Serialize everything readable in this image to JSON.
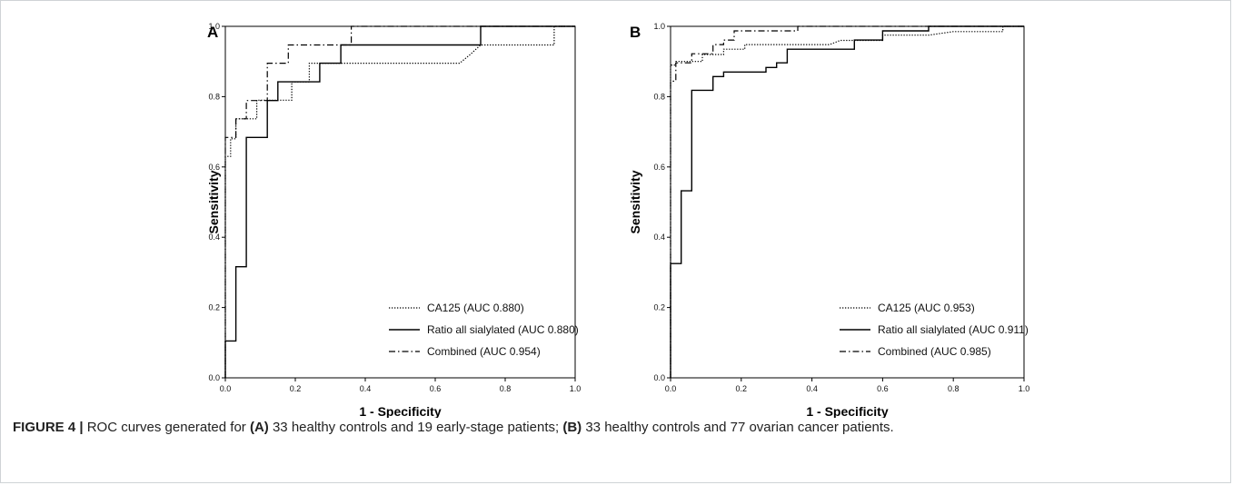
{
  "caption": {
    "figure_label": "FIGURE 4 |",
    "text_1": " ROC curves generated for ",
    "tag_a": "(A)",
    "text_2": " 33 healthy controls and 19 early-stage patients; ",
    "tag_b": "(B)",
    "text_3": " 33 healthy controls and 77 ovarian cancer patients."
  },
  "chart_data": [
    {
      "type": "line",
      "panel": "A",
      "xlabel": "1 - Specificity",
      "ylabel": "Sensitivity",
      "xlim": [
        0,
        1
      ],
      "ylim": [
        0,
        1
      ],
      "x_ticks": [
        "0.0",
        "0.2",
        "0.4",
        "0.6",
        "0.8",
        "1.0"
      ],
      "y_ticks": [
        "0.0",
        "0.2",
        "0.4",
        "0.6",
        "0.8",
        "1.0"
      ],
      "grid": false,
      "legend_position": "bottom-right",
      "series": [
        {
          "name": "CA125 (AUC 0.880)",
          "style": "dotted",
          "x": [
            0,
            0,
            0.015,
            0.015,
            0.03,
            0.03,
            0.09,
            0.09,
            0.15,
            0.15,
            0.19,
            0.19,
            0.24,
            0.24,
            0.36,
            0.36,
            0.67,
            0.7,
            0.73,
            0.73,
            0.94,
            0.94,
            1
          ],
          "y": [
            0,
            0.63,
            0.63,
            0.68,
            0.68,
            0.737,
            0.737,
            0.79,
            0.79,
            0.79,
            0.79,
            0.842,
            0.842,
            0.895,
            0.895,
            0.895,
            0.895,
            0.92,
            0.947,
            0.947,
            0.947,
            1,
            1
          ]
        },
        {
          "name": "Ratio all sialylated (AUC 0.880)",
          "style": "solid",
          "x": [
            0,
            0,
            0.03,
            0.03,
            0.06,
            0.06,
            0.12,
            0.12,
            0.15,
            0.15,
            0.21,
            0.21,
            0.27,
            0.27,
            0.33,
            0.33,
            0.39,
            0.39,
            0.73,
            0.73,
            1
          ],
          "y": [
            0,
            0.105,
            0.105,
            0.316,
            0.316,
            0.684,
            0.684,
            0.789,
            0.789,
            0.842,
            0.842,
            0.842,
            0.842,
            0.895,
            0.895,
            0.947,
            0.947,
            0.947,
            0.947,
            1,
            1
          ]
        },
        {
          "name": "Combined (AUC 0.954)",
          "style": "dashdot",
          "x": [
            0,
            0,
            0.03,
            0.03,
            0.06,
            0.06,
            0.12,
            0.12,
            0.18,
            0.18,
            0.36,
            0.36,
            1
          ],
          "y": [
            0,
            0.684,
            0.684,
            0.737,
            0.737,
            0.789,
            0.789,
            0.895,
            0.895,
            0.947,
            0.947,
            1,
            1
          ]
        }
      ]
    },
    {
      "type": "line",
      "panel": "B",
      "xlabel": "1 - Specificity",
      "ylabel": "Sensitivity",
      "xlim": [
        0,
        1
      ],
      "ylim": [
        0,
        1
      ],
      "x_ticks": [
        "0.0",
        "0.2",
        "0.4",
        "0.6",
        "0.8",
        "1.0"
      ],
      "y_ticks": [
        "0.0",
        "0.2",
        "0.4",
        "0.6",
        "0.8",
        "1.0"
      ],
      "grid": false,
      "legend_position": "bottom-right",
      "series": [
        {
          "name": "CA125 (AUC 0.953)",
          "style": "dotted",
          "x": [
            0,
            0,
            0.015,
            0.015,
            0.03,
            0.03,
            0.09,
            0.09,
            0.15,
            0.15,
            0.21,
            0.21,
            0.45,
            0.48,
            0.6,
            0.6,
            0.73,
            0.8,
            0.94,
            0.94,
            1
          ],
          "y": [
            0,
            0.89,
            0.89,
            0.9,
            0.9,
            0.9,
            0.9,
            0.92,
            0.92,
            0.935,
            0.935,
            0.948,
            0.948,
            0.96,
            0.96,
            0.975,
            0.975,
            0.985,
            0.985,
            1,
            1
          ]
        },
        {
          "name": "Ratio all sialylated (AUC 0.911)",
          "style": "solid",
          "x": [
            0,
            0,
            0.03,
            0.03,
            0.06,
            0.06,
            0.12,
            0.12,
            0.15,
            0.15,
            0.27,
            0.27,
            0.3,
            0.3,
            0.33,
            0.33,
            0.52,
            0.52,
            0.6,
            0.6,
            0.73,
            0.73,
            1
          ],
          "y": [
            0,
            0.325,
            0.325,
            0.532,
            0.532,
            0.818,
            0.818,
            0.857,
            0.857,
            0.87,
            0.87,
            0.883,
            0.883,
            0.896,
            0.896,
            0.935,
            0.935,
            0.961,
            0.961,
            0.987,
            0.987,
            1,
            1
          ]
        },
        {
          "name": "Combined (AUC 0.985)",
          "style": "dashdot",
          "x": [
            0,
            0,
            0.015,
            0.015,
            0.06,
            0.06,
            0.12,
            0.12,
            0.15,
            0.15,
            0.18,
            0.18,
            0.36,
            0.36,
            1
          ],
          "y": [
            0,
            0.844,
            0.844,
            0.896,
            0.896,
            0.922,
            0.922,
            0.948,
            0.948,
            0.961,
            0.961,
            0.987,
            0.987,
            1,
            1
          ]
        }
      ]
    }
  ]
}
